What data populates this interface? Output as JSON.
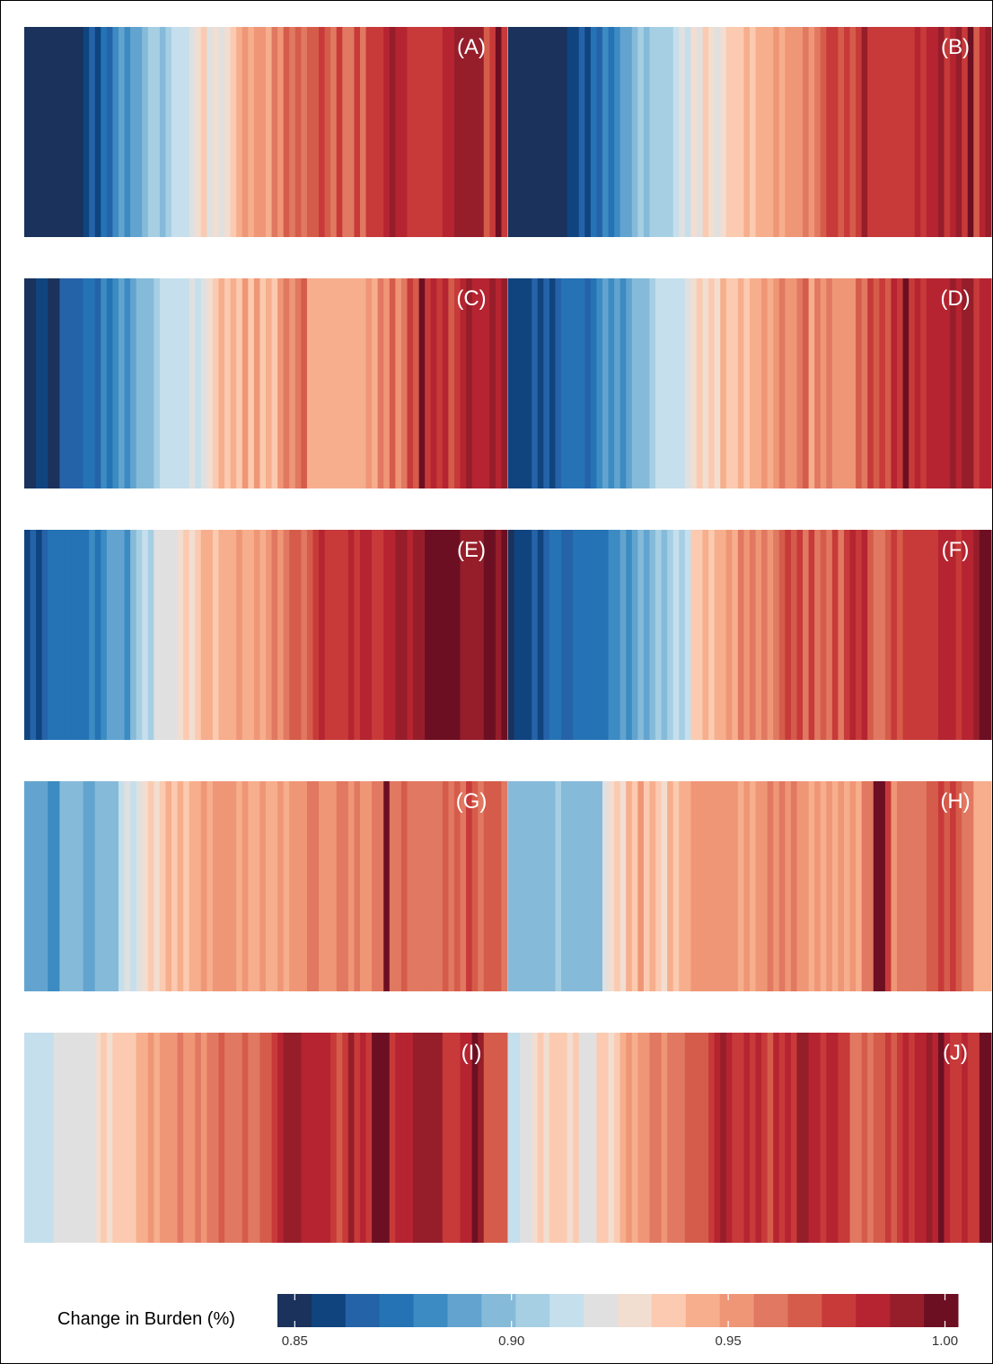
{
  "palette": [
    "#1a325c",
    "#0f447f",
    "#2563a9",
    "#2573b5",
    "#3c8bc2",
    "#62a4cf",
    "#86bad9",
    "#a6cfe4",
    "#c5dfec",
    "#e0e0e0",
    "#f2ddd1",
    "#fbcab0",
    "#f6ae8d",
    "#ef9676",
    "#e17861",
    "#d55c4a",
    "#c73a39",
    "#b52430",
    "#961d2a",
    "#6d0f22"
  ],
  "chart_data": {
    "type": "heatmap",
    "title": "",
    "legend": {
      "title": "Change in Burden (%)",
      "position": "bottom",
      "min": 0.846,
      "max": 1.003,
      "ticks": [
        0.85,
        0.9,
        0.95,
        1.0
      ],
      "tick_labels": [
        "0.85",
        "0.90",
        "0.95",
        "1.00"
      ]
    },
    "panels": [
      {
        "label": "(A)",
        "stripes": [
          0.849,
          0.849,
          0.849,
          0.849,
          0.849,
          0.849,
          0.849,
          0.849,
          0.849,
          0.849,
          0.856,
          0.866,
          0.856,
          0.873,
          0.866,
          0.881,
          0.889,
          0.881,
          0.889,
          0.889,
          0.897,
          0.904,
          0.904,
          0.897,
          0.904,
          0.913,
          0.913,
          0.913,
          0.92,
          0.93,
          0.936,
          0.92,
          0.93,
          0.92,
          0.93,
          0.936,
          0.944,
          0.952,
          0.944,
          0.952,
          0.952,
          0.944,
          0.96,
          0.952,
          0.968,
          0.96,
          0.968,
          0.96,
          0.968,
          0.968,
          0.976,
          0.968,
          0.96,
          0.976,
          0.96,
          0.96,
          0.976,
          0.96,
          0.976,
          0.976,
          0.976,
          0.984,
          0.992,
          0.984,
          0.984,
          0.976,
          0.976,
          0.976,
          0.976,
          0.976,
          0.976,
          0.984,
          0.984,
          0.992,
          0.992,
          0.992,
          0.992,
          0.992,
          0.968,
          0.976,
          0.999,
          0.976
        ]
      },
      {
        "label": "(B)",
        "stripes": [
          0.849,
          0.849,
          0.849,
          0.849,
          0.849,
          0.849,
          0.849,
          0.849,
          0.849,
          0.849,
          0.856,
          0.856,
          0.866,
          0.856,
          0.873,
          0.866,
          0.881,
          0.873,
          0.881,
          0.889,
          0.889,
          0.897,
          0.904,
          0.897,
          0.904,
          0.904,
          0.904,
          0.904,
          0.913,
          0.92,
          0.913,
          0.93,
          0.92,
          0.936,
          0.93,
          0.92,
          0.93,
          0.936,
          0.936,
          0.936,
          0.944,
          0.936,
          0.944,
          0.944,
          0.944,
          0.952,
          0.944,
          0.952,
          0.952,
          0.952,
          0.96,
          0.952,
          0.96,
          0.968,
          0.976,
          0.976,
          0.968,
          0.976,
          0.968,
          0.976,
          0.992,
          0.976,
          0.976,
          0.976,
          0.976,
          0.976,
          0.976,
          0.976,
          0.976,
          0.984,
          0.976,
          0.984,
          0.984,
          0.992,
          0.976,
          0.984,
          0.992,
          0.976,
          0.999,
          0.968,
          0.984,
          0.992
        ]
      },
      {
        "label": "(C)",
        "stripes": [
          0.849,
          0.849,
          0.856,
          0.856,
          0.849,
          0.849,
          0.866,
          0.866,
          0.866,
          0.866,
          0.873,
          0.873,
          0.866,
          0.881,
          0.873,
          0.881,
          0.889,
          0.881,
          0.889,
          0.897,
          0.897,
          0.897,
          0.904,
          0.913,
          0.913,
          0.913,
          0.913,
          0.913,
          0.92,
          0.913,
          0.92,
          0.93,
          0.936,
          0.944,
          0.936,
          0.944,
          0.936,
          0.952,
          0.936,
          0.952,
          0.936,
          0.944,
          0.936,
          0.952,
          0.96,
          0.952,
          0.96,
          0.968,
          0.944,
          0.944,
          0.944,
          0.944,
          0.944,
          0.944,
          0.944,
          0.944,
          0.944,
          0.944,
          0.952,
          0.944,
          0.96,
          0.952,
          0.968,
          0.952,
          0.96,
          0.976,
          0.968,
          0.999,
          0.976,
          0.984,
          0.976,
          0.984,
          0.968,
          0.976,
          0.984,
          0.992,
          0.984,
          0.984,
          0.984,
          0.992,
          0.984,
          0.992
        ]
      },
      {
        "label": "(D)",
        "stripes": [
          0.856,
          0.856,
          0.856,
          0.856,
          0.866,
          0.856,
          0.866,
          0.856,
          0.866,
          0.873,
          0.873,
          0.873,
          0.873,
          0.866,
          0.873,
          0.881,
          0.889,
          0.881,
          0.889,
          0.881,
          0.889,
          0.897,
          0.897,
          0.897,
          0.904,
          0.913,
          0.913,
          0.913,
          0.913,
          0.913,
          0.92,
          0.93,
          0.936,
          0.93,
          0.936,
          0.93,
          0.944,
          0.936,
          0.936,
          0.944,
          0.936,
          0.944,
          0.944,
          0.952,
          0.944,
          0.952,
          0.96,
          0.952,
          0.952,
          0.96,
          0.968,
          0.944,
          0.96,
          0.952,
          0.96,
          0.952,
          0.952,
          0.952,
          0.952,
          0.968,
          0.96,
          0.976,
          0.968,
          0.976,
          0.968,
          0.984,
          0.976,
          0.999,
          0.976,
          0.984,
          0.976,
          0.984,
          0.984,
          0.984,
          0.984,
          0.992,
          0.984,
          0.992,
          0.992,
          0.976,
          0.984,
          0.984
        ]
      },
      {
        "label": "(E)",
        "stripes": [
          0.856,
          0.866,
          0.856,
          0.866,
          0.873,
          0.873,
          0.873,
          0.873,
          0.873,
          0.873,
          0.873,
          0.881,
          0.873,
          0.881,
          0.889,
          0.889,
          0.889,
          0.881,
          0.897,
          0.904,
          0.913,
          0.904,
          0.92,
          0.92,
          0.92,
          0.92,
          0.93,
          0.936,
          0.93,
          0.936,
          0.944,
          0.944,
          0.936,
          0.944,
          0.944,
          0.944,
          0.952,
          0.944,
          0.944,
          0.952,
          0.944,
          0.952,
          0.96,
          0.952,
          0.96,
          0.968,
          0.968,
          0.96,
          0.968,
          0.976,
          0.984,
          0.976,
          0.976,
          0.976,
          0.976,
          0.984,
          0.976,
          0.984,
          0.984,
          0.976,
          0.976,
          0.984,
          0.984,
          0.992,
          0.992,
          0.984,
          0.992,
          0.992,
          0.999,
          0.999,
          0.999,
          0.999,
          0.999,
          0.999,
          0.992,
          0.992,
          0.992,
          0.992,
          0.999,
          0.999,
          0.992,
          0.999
        ]
      },
      {
        "label": "(F)",
        "stripes": [
          0.849,
          0.856,
          0.856,
          0.856,
          0.866,
          0.856,
          0.866,
          0.873,
          0.873,
          0.866,
          0.866,
          0.873,
          0.873,
          0.873,
          0.873,
          0.873,
          0.873,
          0.881,
          0.881,
          0.889,
          0.881,
          0.889,
          0.897,
          0.889,
          0.897,
          0.904,
          0.897,
          0.904,
          0.913,
          0.904,
          0.913,
          0.936,
          0.936,
          0.944,
          0.936,
          0.944,
          0.944,
          0.952,
          0.944,
          0.96,
          0.952,
          0.96,
          0.952,
          0.96,
          0.952,
          0.96,
          0.968,
          0.976,
          0.968,
          0.976,
          0.96,
          0.976,
          0.96,
          0.968,
          0.96,
          0.976,
          0.96,
          0.976,
          0.984,
          0.976,
          0.984,
          0.968,
          0.96,
          0.96,
          0.968,
          0.976,
          0.968,
          0.976,
          0.976,
          0.976,
          0.976,
          0.976,
          0.976,
          0.984,
          0.984,
          0.984,
          0.976,
          0.984,
          0.984,
          0.992,
          0.999,
          0.999
        ]
      },
      {
        "label": "(G)",
        "stripes": [
          0.889,
          0.889,
          0.889,
          0.889,
          0.881,
          0.881,
          0.897,
          0.897,
          0.897,
          0.897,
          0.889,
          0.889,
          0.897,
          0.897,
          0.897,
          0.897,
          0.913,
          0.92,
          0.913,
          0.92,
          0.93,
          0.936,
          0.93,
          0.936,
          0.944,
          0.936,
          0.944,
          0.936,
          0.944,
          0.944,
          0.952,
          0.944,
          0.952,
          0.952,
          0.952,
          0.952,
          0.944,
          0.952,
          0.944,
          0.944,
          0.952,
          0.944,
          0.944,
          0.952,
          0.944,
          0.952,
          0.952,
          0.952,
          0.96,
          0.96,
          0.952,
          0.952,
          0.952,
          0.96,
          0.96,
          0.952,
          0.96,
          0.952,
          0.952,
          0.96,
          0.96,
          0.999,
          0.96,
          0.96,
          0.968,
          0.96,
          0.96,
          0.96,
          0.96,
          0.96,
          0.96,
          0.968,
          0.96,
          0.968,
          0.96,
          0.976,
          0.968,
          0.96,
          0.968,
          0.968,
          0.968,
          0.96
        ]
      },
      {
        "label": "(H)",
        "stripes": [
          0.897,
          0.897,
          0.897,
          0.897,
          0.897,
          0.897,
          0.897,
          0.897,
          0.904,
          0.897,
          0.897,
          0.897,
          0.897,
          0.897,
          0.897,
          0.897,
          0.92,
          0.93,
          0.936,
          0.93,
          0.944,
          0.936,
          0.952,
          0.936,
          0.944,
          0.936,
          0.93,
          0.944,
          0.936,
          0.944,
          0.944,
          0.952,
          0.952,
          0.952,
          0.952,
          0.952,
          0.952,
          0.952,
          0.952,
          0.944,
          0.952,
          0.944,
          0.952,
          0.952,
          0.96,
          0.952,
          0.96,
          0.952,
          0.96,
          0.952,
          0.952,
          0.944,
          0.952,
          0.944,
          0.952,
          0.944,
          0.952,
          0.944,
          0.952,
          0.944,
          0.96,
          0.96,
          0.999,
          0.999,
          0.976,
          0.952,
          0.96,
          0.96,
          0.96,
          0.96,
          0.96,
          0.968,
          0.968,
          0.976,
          0.968,
          0.976,
          0.968,
          0.96,
          0.96,
          0.944,
          0.944,
          0.944
        ]
      },
      {
        "label": "(I)",
        "stripes": [
          0.913,
          0.913,
          0.913,
          0.913,
          0.913,
          0.92,
          0.92,
          0.92,
          0.92,
          0.92,
          0.92,
          0.92,
          0.93,
          0.936,
          0.93,
          0.936,
          0.936,
          0.936,
          0.936,
          0.944,
          0.944,
          0.952,
          0.944,
          0.952,
          0.952,
          0.952,
          0.96,
          0.952,
          0.952,
          0.96,
          0.952,
          0.96,
          0.96,
          0.968,
          0.96,
          0.96,
          0.96,
          0.968,
          0.96,
          0.96,
          0.968,
          0.968,
          0.976,
          0.984,
          0.992,
          0.992,
          0.992,
          0.984,
          0.984,
          0.984,
          0.984,
          0.984,
          0.976,
          0.968,
          0.976,
          0.992,
          0.976,
          0.984,
          0.976,
          0.999,
          0.999,
          0.999,
          0.976,
          0.984,
          0.984,
          0.984,
          0.992,
          0.992,
          0.992,
          0.992,
          0.992,
          0.976,
          0.976,
          0.976,
          0.984,
          0.984,
          0.999,
          0.992,
          0.968,
          0.968,
          0.968,
          0.968
        ]
      },
      {
        "label": "(J)",
        "stripes": [
          0.913,
          0.913,
          0.92,
          0.92,
          0.93,
          0.936,
          0.93,
          0.936,
          0.936,
          0.936,
          0.93,
          0.936,
          0.92,
          0.92,
          0.92,
          0.936,
          0.936,
          0.93,
          0.936,
          0.944,
          0.952,
          0.944,
          0.952,
          0.952,
          0.96,
          0.96,
          0.952,
          0.96,
          0.96,
          0.96,
          0.968,
          0.968,
          0.968,
          0.968,
          0.976,
          0.984,
          0.992,
          0.984,
          0.976,
          0.976,
          0.984,
          0.976,
          0.984,
          0.976,
          0.968,
          0.984,
          0.976,
          0.984,
          0.976,
          0.992,
          0.992,
          0.984,
          0.984,
          0.976,
          0.984,
          0.984,
          0.976,
          0.976,
          0.96,
          0.96,
          0.968,
          0.96,
          0.968,
          0.968,
          0.976,
          0.968,
          0.976,
          0.984,
          0.976,
          0.984,
          0.984,
          0.992,
          0.984,
          0.999,
          0.984,
          0.976,
          0.976,
          0.984,
          0.976,
          0.976,
          0.999,
          0.999
        ]
      }
    ]
  }
}
